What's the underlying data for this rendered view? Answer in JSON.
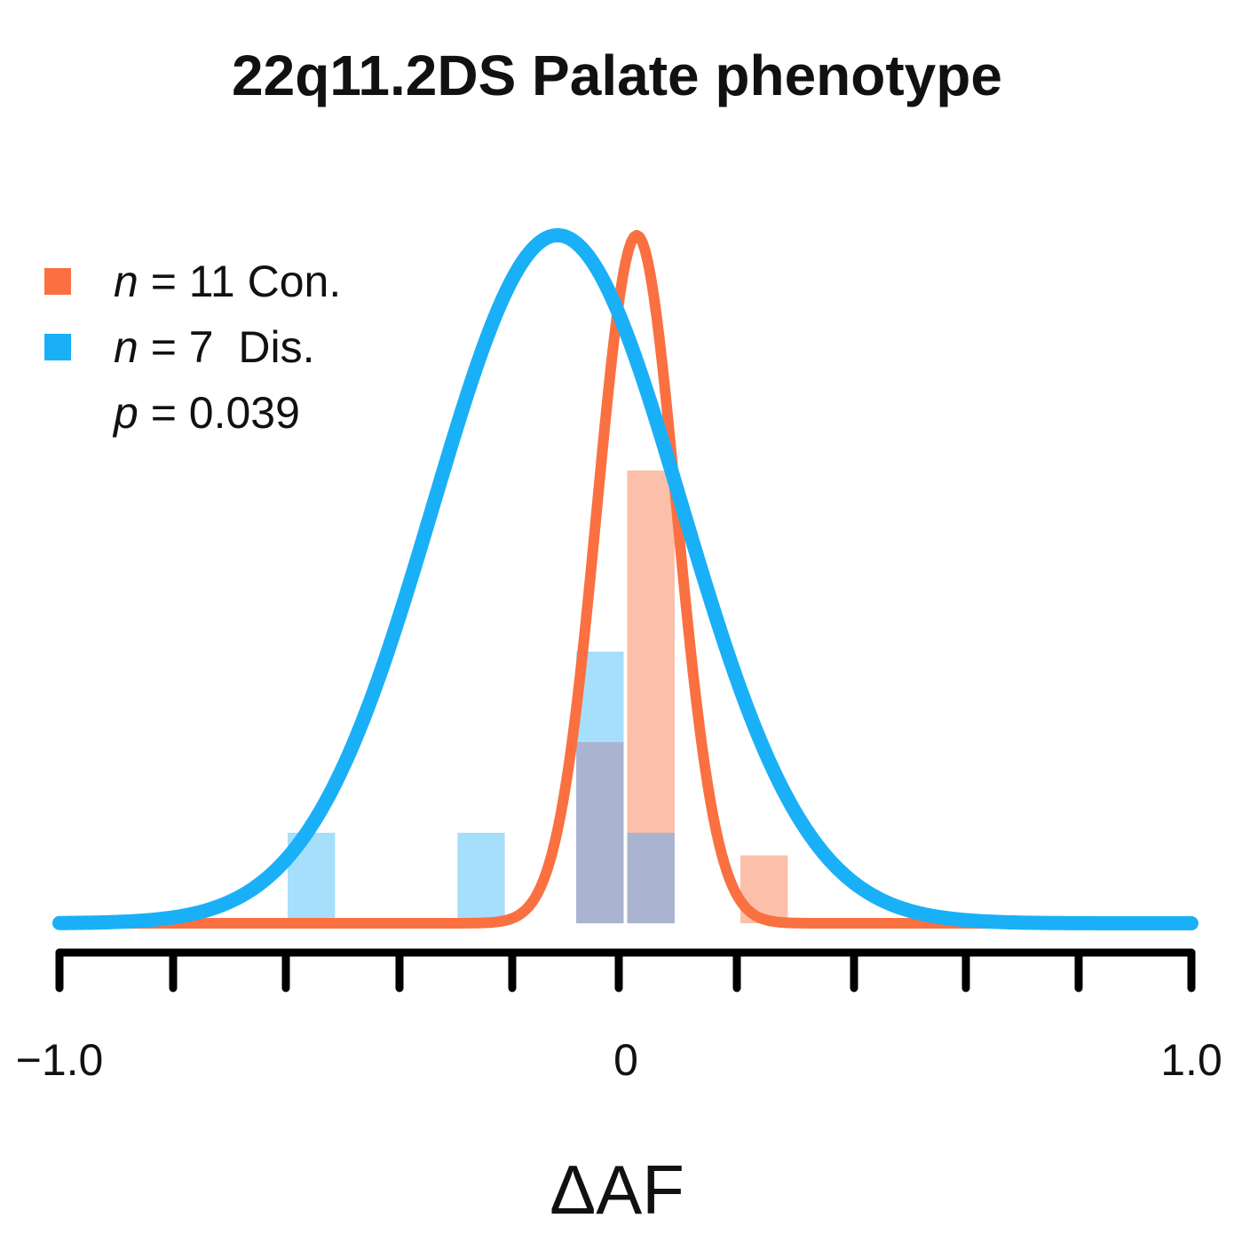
{
  "chart_data": {
    "type": "histogram-density",
    "title": "22q11.2DS Palate phenotype",
    "xlabel": "ΔAF",
    "xlim": [
      -1.0,
      1.0
    ],
    "x_tick_labels": [
      {
        "value": -1.0,
        "label": "−1.0"
      },
      {
        "value": 0,
        "label": "0"
      },
      {
        "value": 1.0,
        "label": "1.0"
      }
    ],
    "x_ticks": [
      -1.0,
      -0.8,
      -0.6,
      -0.4,
      -0.2,
      -0.1,
      0,
      0.2,
      0.4,
      0.6,
      0.8,
      1.0
    ],
    "annotation": {
      "prefix": "p",
      "text": " = 0.039"
    },
    "series": [
      {
        "name": "n = 11 Con.",
        "legend_prefix": "n",
        "legend_text": " = 11 Con.",
        "color": "#FA7040",
        "bar_color": "#FCBFA9",
        "bins": [
          {
            "x0": -0.09,
            "x1": 0.0,
            "count": 2
          },
          {
            "x0": 0.0,
            "x1": 0.09,
            "count": 5
          },
          {
            "x0": 0.2,
            "x1": 0.29,
            "count": 0.75
          }
        ],
        "density": {
          "type": "normal",
          "mean": 0.02,
          "sd": 0.07
        }
      },
      {
        "name": "n = 7 Dis.",
        "legend_prefix": "n",
        "legend_text": " = 7  Dis.",
        "color": "#1AB0F7",
        "bar_color": "#A6DFFB",
        "bins": [
          {
            "x0": -0.6,
            "x1": -0.51,
            "count": 1
          },
          {
            "x0": -0.3,
            "x1": -0.21,
            "count": 1
          },
          {
            "x0": -0.09,
            "x1": 0.0,
            "count": 3
          },
          {
            "x0": 0.0,
            "x1": 0.09,
            "count": 1
          }
        ],
        "density": {
          "type": "normal",
          "mean": -0.12,
          "sd": 0.22
        }
      }
    ],
    "overlap_color": "#AAB4D0",
    "grid": false
  }
}
